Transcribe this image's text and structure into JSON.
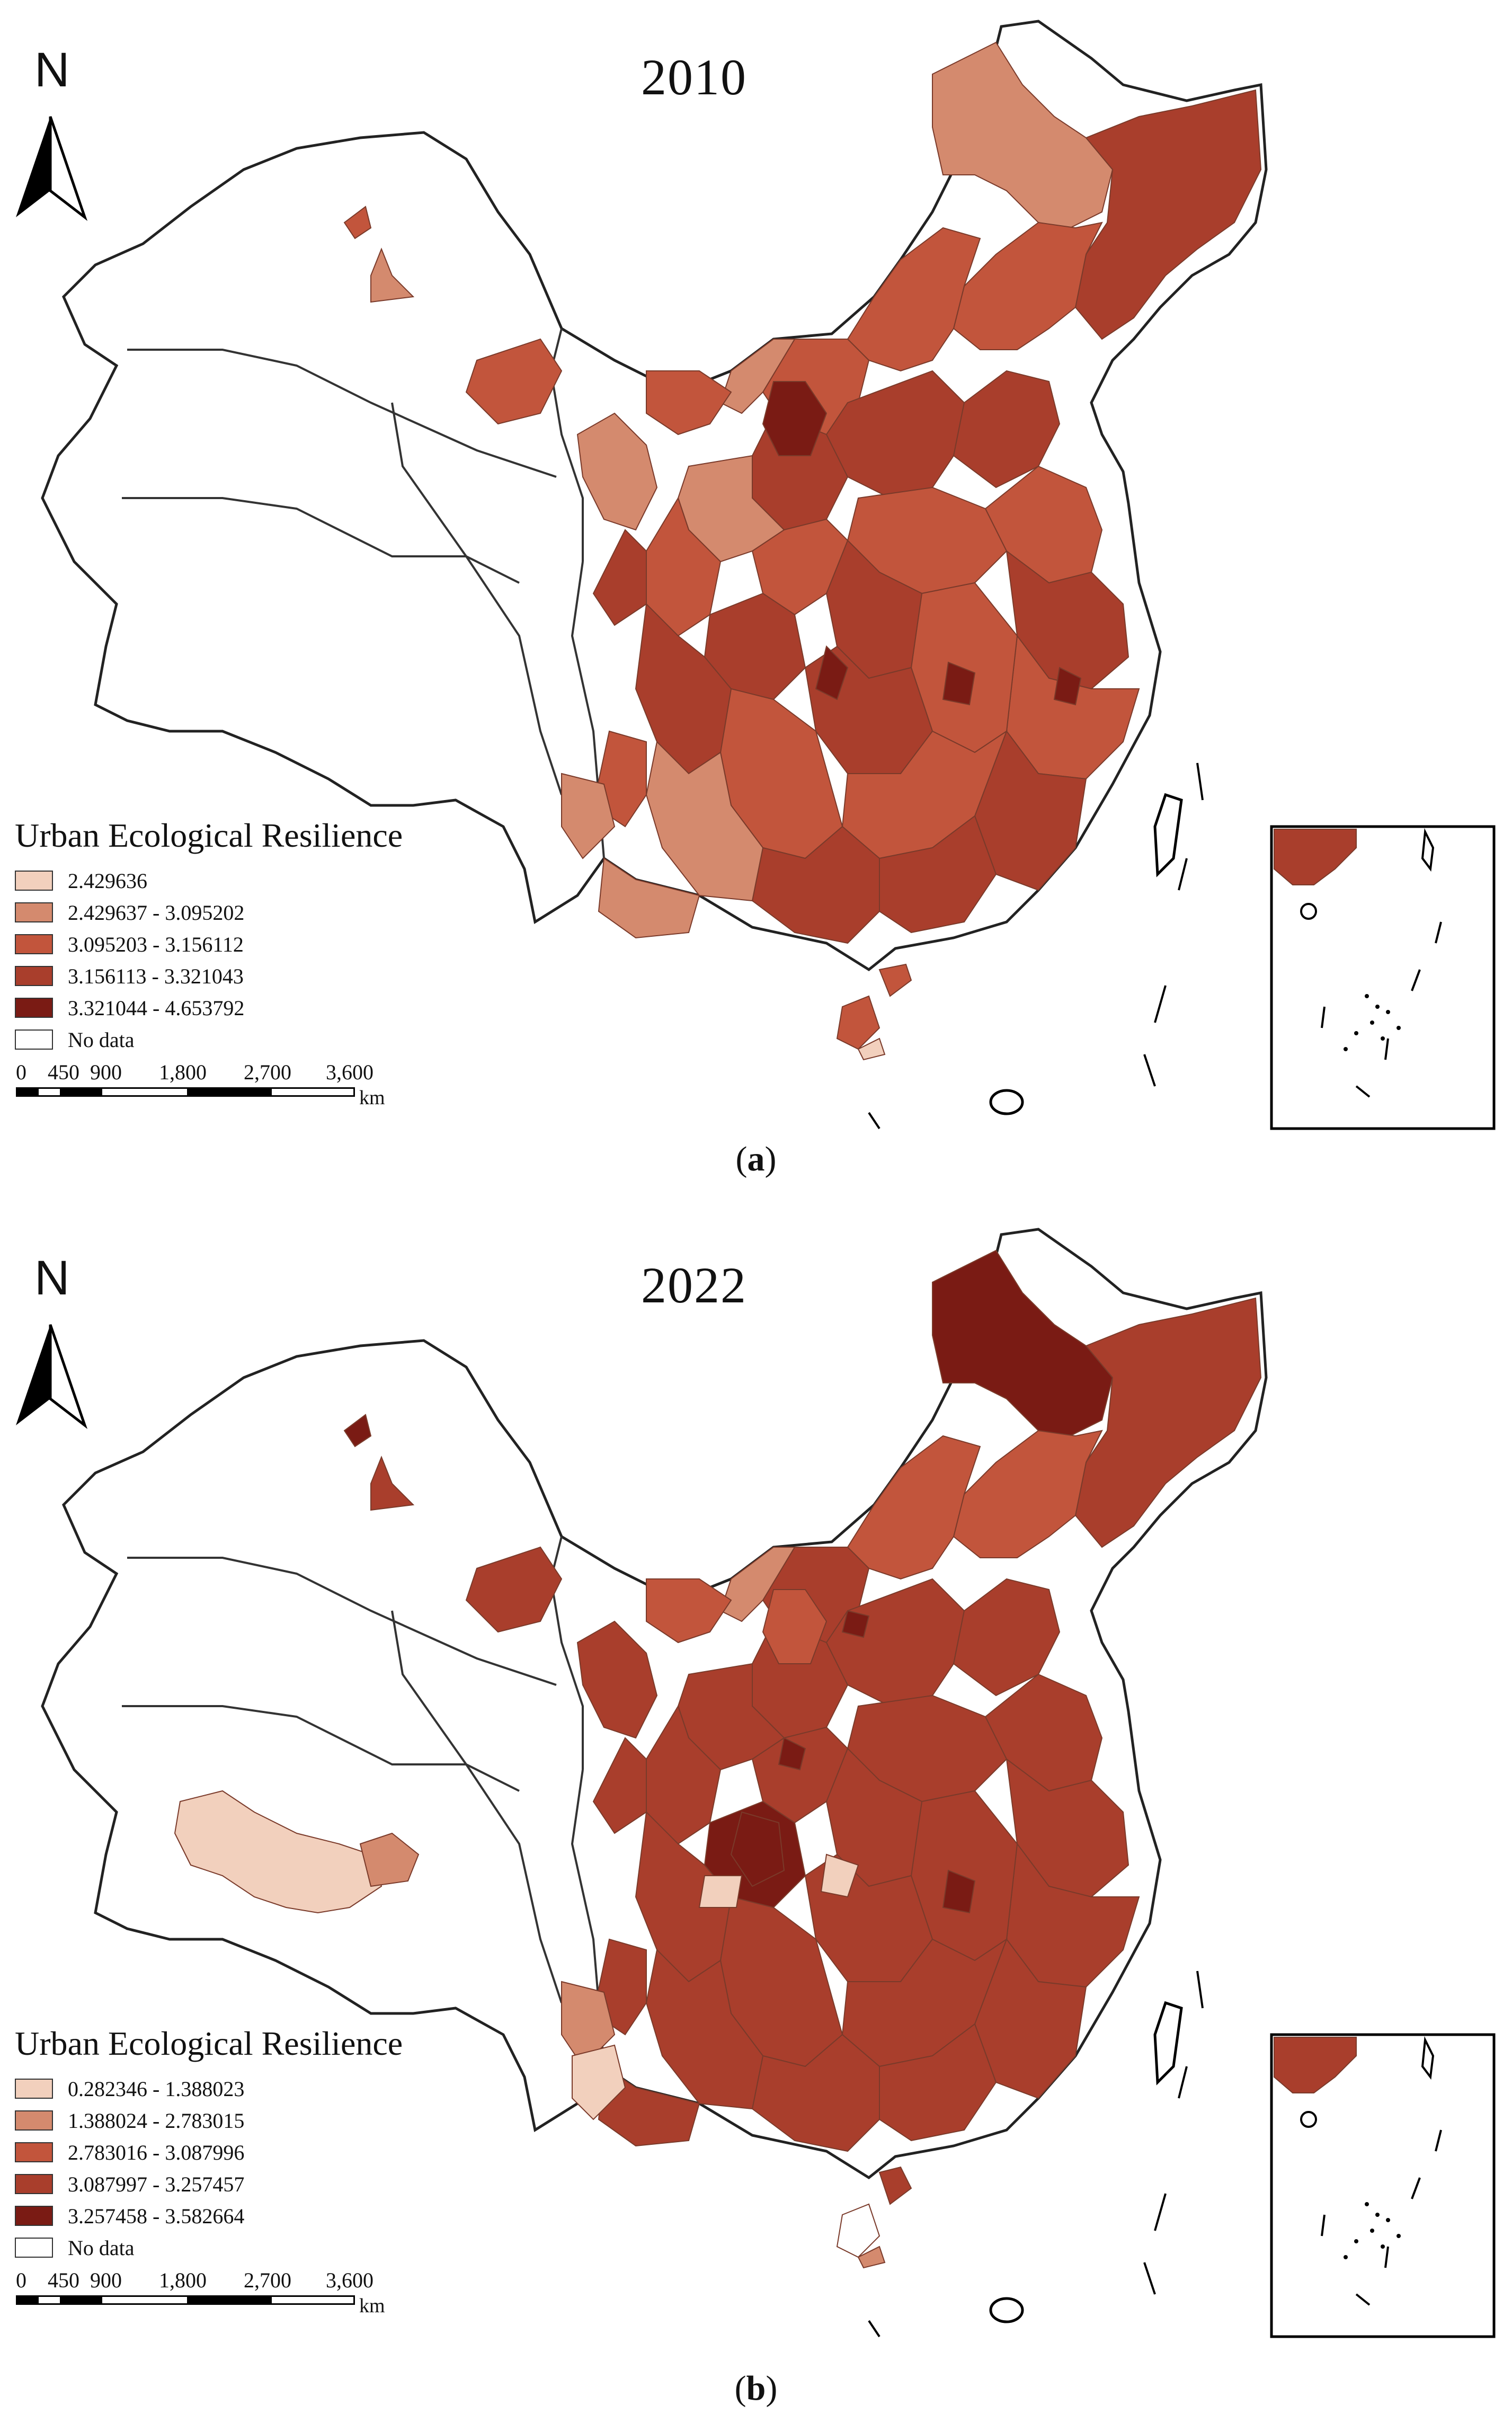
{
  "north_label": "N",
  "unit_label": "km",
  "scale_ticks": [
    "0",
    "450",
    "900",
    "1,800",
    "2,700",
    "3,600"
  ],
  "legend_title": "Urban Ecological Resilience",
  "no_data_label": "No data",
  "panels": [
    {
      "caption_open": "(",
      "caption_letter": "a",
      "caption_close": ")",
      "year": "2010",
      "legend": [
        {
          "label": "2.429636",
          "color": "#f2d0bd"
        },
        {
          "label": "2.429637 - 3.095202",
          "color": "#d48a6e"
        },
        {
          "label": "3.095203 - 3.156112",
          "color": "#c2553c"
        },
        {
          "label": "3.156113 - 3.321043",
          "color": "#a93e2c"
        },
        {
          "label": "3.321044 - 4.653792",
          "color": "#7a1b14"
        }
      ]
    },
    {
      "caption_open": "(",
      "caption_letter": "b",
      "caption_close": ")",
      "year": "2022",
      "legend": [
        {
          "label": "0.282346 - 1.388023",
          "color": "#f2d0bd"
        },
        {
          "label": "1.388024 - 2.783015",
          "color": "#d48a6e"
        },
        {
          "label": "2.783016 - 3.087996",
          "color": "#c2553c"
        },
        {
          "label": "3.087997 - 3.257457",
          "color": "#a93e2c"
        },
        {
          "label": "3.257458 - 3.582664",
          "color": "#7a1b14"
        }
      ]
    }
  ]
}
